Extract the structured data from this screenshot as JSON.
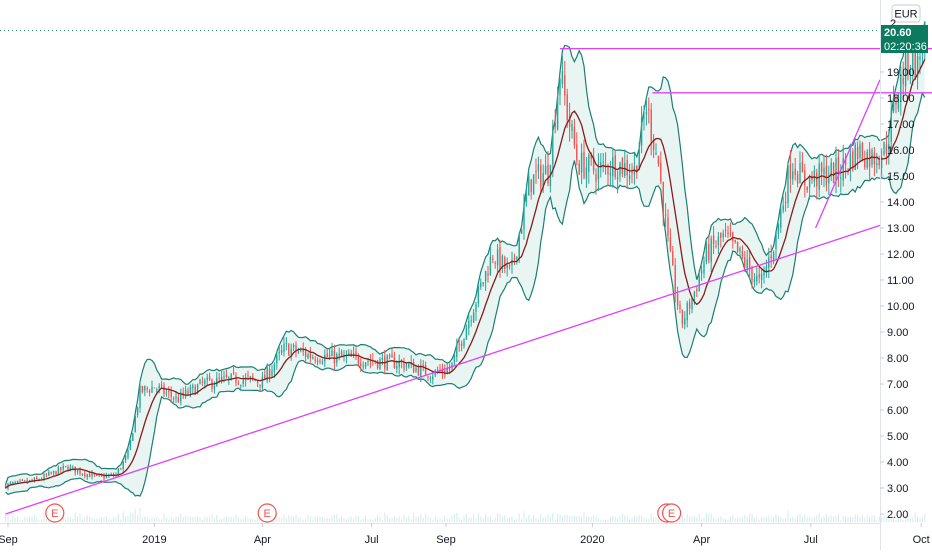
{
  "chart_data": {
    "type": "candlestick",
    "currency_label": "EUR",
    "last_price_label": "20.60",
    "countdown_label": "02:20:36",
    "top_partial_tick": "2",
    "y_ticks": [
      "2.00",
      "3.00",
      "4.00",
      "5.00",
      "6.00",
      "7.00",
      "8.00",
      "9.00",
      "10.00",
      "11.00",
      "12.00",
      "13.00",
      "14.00",
      "15.00",
      "16.00",
      "17.00",
      "18.00",
      "19.00"
    ],
    "x_ticks": [
      "Sep",
      "2019",
      "Apr",
      "Jul",
      "Sep",
      "2020",
      "Apr",
      "Jul",
      "Oct"
    ],
    "ylim": [
      1.6,
      21.2
    ],
    "x_axis_range_days": [
      0,
      460
    ],
    "x_tick_dates": [
      "2018-09-01",
      "2019-01-01",
      "2019-04-01",
      "2019-07-01",
      "2019-09-01",
      "2020-01-01",
      "2020-04-01",
      "2020-07-01",
      "2020-10-01"
    ],
    "price_path": [
      {
        "date": "2018-08-30",
        "close": 3.1
      },
      {
        "date": "2018-09-25",
        "close": 3.3
      },
      {
        "date": "2018-10-20",
        "close": 3.8
      },
      {
        "date": "2018-11-15",
        "close": 3.4
      },
      {
        "date": "2018-11-30",
        "close": 3.5
      },
      {
        "date": "2018-12-10",
        "close": 4.3
      },
      {
        "date": "2018-12-20",
        "close": 6.7
      },
      {
        "date": "2019-01-01",
        "close": 6.9
      },
      {
        "date": "2019-01-20",
        "close": 6.4
      },
      {
        "date": "2019-02-10",
        "close": 7.0
      },
      {
        "date": "2019-03-10",
        "close": 7.2
      },
      {
        "date": "2019-04-01",
        "close": 7.1
      },
      {
        "date": "2019-04-20",
        "close": 8.4
      },
      {
        "date": "2019-05-10",
        "close": 8.1
      },
      {
        "date": "2019-06-10",
        "close": 8.0
      },
      {
        "date": "2019-07-01",
        "close": 7.9
      },
      {
        "date": "2019-07-25",
        "close": 7.8
      },
      {
        "date": "2019-08-20",
        "close": 7.4
      },
      {
        "date": "2019-09-05",
        "close": 7.6
      },
      {
        "date": "2019-09-20",
        "close": 9.5
      },
      {
        "date": "2019-10-10",
        "close": 12.0
      },
      {
        "date": "2019-10-25",
        "close": 11.2
      },
      {
        "date": "2019-11-10",
        "close": 14.8
      },
      {
        "date": "2019-11-25",
        "close": 15.2
      },
      {
        "date": "2019-12-05",
        "close": 19.0
      },
      {
        "date": "2019-12-12",
        "close": 17.2
      },
      {
        "date": "2019-12-20",
        "close": 15.5
      },
      {
        "date": "2020-01-05",
        "close": 15.2
      },
      {
        "date": "2020-01-20",
        "close": 15.5
      },
      {
        "date": "2020-02-05",
        "close": 15.2
      },
      {
        "date": "2020-02-15",
        "close": 17.7
      },
      {
        "date": "2020-02-25",
        "close": 15.5
      },
      {
        "date": "2020-03-05",
        "close": 12.0
      },
      {
        "date": "2020-03-15",
        "close": 9.3
      },
      {
        "date": "2020-03-25",
        "close": 10.4
      },
      {
        "date": "2020-04-05",
        "close": 12.0
      },
      {
        "date": "2020-04-20",
        "close": 12.7
      },
      {
        "date": "2020-05-05",
        "close": 11.8
      },
      {
        "date": "2020-05-20",
        "close": 10.8
      },
      {
        "date": "2020-06-01",
        "close": 12.5
      },
      {
        "date": "2020-06-15",
        "close": 15.6
      },
      {
        "date": "2020-06-25",
        "close": 14.8
      },
      {
        "date": "2020-07-10",
        "close": 15.0
      },
      {
        "date": "2020-07-25",
        "close": 15.2
      },
      {
        "date": "2020-08-10",
        "close": 16.0
      },
      {
        "date": "2020-08-20",
        "close": 15.7
      },
      {
        "date": "2020-09-01",
        "close": 16.0
      },
      {
        "date": "2020-09-10",
        "close": 18.0
      },
      {
        "date": "2020-09-20",
        "close": 19.5
      },
      {
        "date": "2020-09-28",
        "close": 19.2
      },
      {
        "date": "2020-10-04",
        "close": 20.6
      }
    ],
    "indicators": [
      "Bollinger Bands",
      "Moving Average"
    ],
    "trendlines": [
      {
        "name": "lower support",
        "from": {
          "date": "2018-08-30",
          "price": 2.0
        },
        "to": {
          "date": "2020-11-30",
          "price": 13.1
        }
      },
      {
        "name": "upper support",
        "from": {
          "date": "2020-07-05",
          "price": 13.0
        },
        "to": {
          "date": "2020-11-30",
          "price": 18.7
        }
      }
    ],
    "horizontal_lines": [
      {
        "name": "resistance high",
        "price": 19.9,
        "from": "2019-12-05",
        "to": "2020-11-20"
      },
      {
        "name": "resistance mid",
        "price": 18.2,
        "from": "2020-02-20",
        "to": "2020-11-20"
      }
    ],
    "event_markers": [
      {
        "label": "E",
        "date": "2018-10-10"
      },
      {
        "label": "E",
        "date": "2019-04-05"
      },
      {
        "label": "E",
        "date": "2020-03-03"
      },
      {
        "label": "E",
        "date": "2020-03-07"
      }
    ],
    "colors": {
      "up": "#26a69a",
      "down": "#ef5350",
      "band": "#1a7f72",
      "band_fill": "#d6ecea",
      "ma": "#8b1a1a",
      "trendline": "#e040fb",
      "price_badge": "#0b7a5e",
      "event": "#ef5350",
      "axis_text": "#131722"
    }
  }
}
